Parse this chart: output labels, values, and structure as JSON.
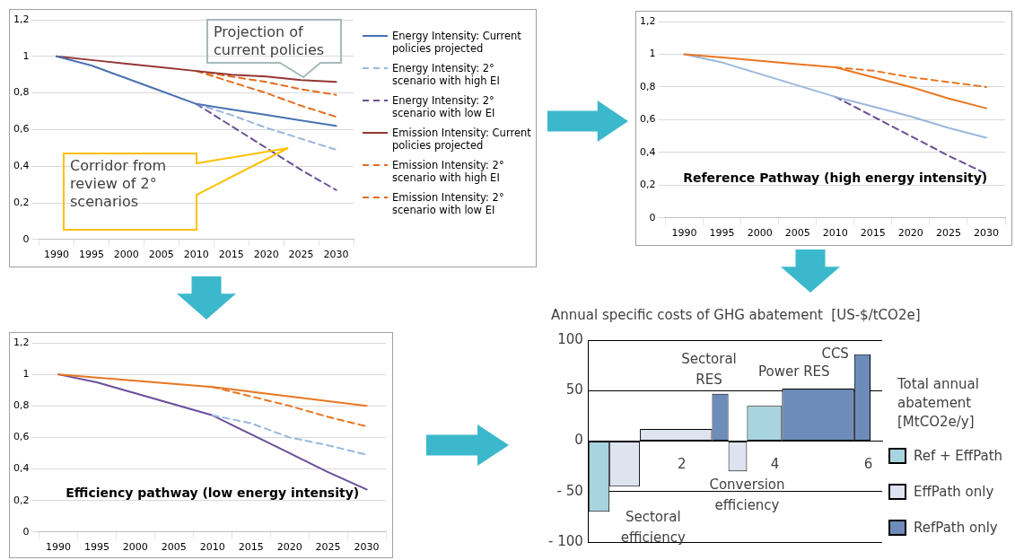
{
  "chart_data": [
    {
      "type": "line",
      "categories": [
        "1990",
        "1995",
        "2000",
        "2005",
        "2010",
        "2015",
        "2020",
        "2025",
        "2030"
      ],
      "ylim": [
        0,
        1.2
      ],
      "yticks": [
        0,
        {
          "value": 0.2,
          "label": "0,2"
        },
        {
          "value": 0.4,
          "label": "0,4"
        },
        {
          "value": 0.6,
          "label": "0,6"
        },
        {
          "value": 0.8,
          "label": "0,8"
        },
        1,
        {
          "value": 1.2,
          "label": "1,2"
        }
      ],
      "grid": "y",
      "legend": "right",
      "marker": "none",
      "annotations": [
        "Projection of current policies",
        "Corridor from review of 2° scenarios"
      ],
      "series": [
        {
          "name": "Energy Intensity: Current policies projected",
          "color": "#4a72b0",
          "line_style": "solid",
          "values": [
            1,
            0.95,
            0.88,
            0.81,
            0.74,
            0.71,
            0.68,
            0.65,
            0.62
          ]
        },
        {
          "name": "Energy Intensity: 2° scenario with high EI",
          "color": "#9ab7dd",
          "line_style": "dashed",
          "values": [
            null,
            null,
            null,
            null,
            0.74,
            0.68,
            0.61,
            0.55,
            0.49
          ]
        },
        {
          "name": "Energy Intensity: 2° scenario with low EI",
          "color": "#6a4f96",
          "line_style": "dashed",
          "values": [
            null,
            null,
            null,
            null,
            0.74,
            0.62,
            0.5,
            0.38,
            0.27
          ]
        },
        {
          "name": "Emission Intensity: Current policies projected",
          "color": "#943634",
          "line_style": "solid",
          "values": [
            1,
            0.98,
            0.96,
            0.94,
            0.92,
            0.9,
            0.89,
            0.87,
            0.86
          ]
        },
        {
          "name": "Emission Intensity: 2° scenario with high EI",
          "color": "#e46c1f",
          "line_style": "dashed",
          "values": [
            null,
            null,
            null,
            null,
            0.92,
            0.89,
            0.86,
            0.82,
            0.79
          ]
        },
        {
          "name": "Emission Intensity: 2° scenario with low EI",
          "color": "#e46c1f",
          "line_style": "dashed",
          "values": [
            null,
            null,
            null,
            null,
            0.92,
            0.86,
            0.8,
            0.73,
            0.67
          ]
        }
      ]
    },
    {
      "type": "line",
      "title": "Reference Pathway (high energy intensity)",
      "categories": [
        "1990",
        "1995",
        "2000",
        "2005",
        "2010",
        "2015",
        "2020",
        "2025",
        "2030"
      ],
      "ylim": [
        0,
        1.2
      ],
      "yticks": [
        0,
        {
          "value": 0.2,
          "label": "0,2"
        },
        {
          "value": 0.4,
          "label": "0,4"
        },
        {
          "value": 0.6,
          "label": "0,6"
        },
        {
          "value": 0.8,
          "label": "0,8"
        },
        1,
        {
          "value": 1.2,
          "label": "1,2"
        }
      ],
      "grid": "y",
      "marker": "none",
      "series": [
        {
          "color": "#e87722",
          "line_style": "solid",
          "values": [
            1,
            0.98,
            0.96,
            0.94,
            0.92,
            0.86,
            0.8,
            0.73,
            0.67
          ]
        },
        {
          "color": "#e87722",
          "line_style": "dashed",
          "values": [
            null,
            null,
            null,
            null,
            0.92,
            0.9,
            0.86,
            0.83,
            0.8
          ]
        },
        {
          "color": "#9ab7dd",
          "line_style": "solid",
          "values": [
            1,
            0.95,
            0.88,
            0.81,
            0.74,
            0.68,
            0.62,
            0.55,
            0.49
          ]
        },
        {
          "color": "#6a4f96",
          "line_style": "dashed",
          "values": [
            null,
            null,
            null,
            null,
            0.74,
            0.62,
            0.5,
            0.38,
            0.27
          ]
        }
      ]
    },
    {
      "type": "line",
      "title": "Efficiency pathway (low energy intensity)",
      "categories": [
        "1990",
        "1995",
        "2000",
        "2005",
        "2010",
        "2015",
        "2020",
        "2025",
        "2030"
      ],
      "ylim": [
        0,
        1.2
      ],
      "yticks": [
        0,
        {
          "value": 0.2,
          "label": "0,2"
        },
        {
          "value": 0.4,
          "label": "0,4"
        },
        {
          "value": 0.6,
          "label": "0,6"
        },
        {
          "value": 0.8,
          "label": "0,8"
        },
        1,
        {
          "value": 1.2,
          "label": "1,2"
        }
      ],
      "grid": "y",
      "marker": "none",
      "series": [
        {
          "color": "#e87722",
          "line_style": "solid",
          "values": [
            1,
            0.98,
            0.96,
            0.94,
            0.92,
            0.89,
            0.86,
            0.83,
            0.8
          ]
        },
        {
          "color": "#e87722",
          "line_style": "dashed",
          "values": [
            null,
            null,
            null,
            null,
            0.92,
            0.86,
            0.8,
            0.73,
            0.67
          ]
        },
        {
          "color": "#9ab7dd",
          "line_style": "dashed",
          "values": [
            null,
            null,
            null,
            null,
            0.74,
            0.69,
            0.6,
            0.55,
            0.49
          ]
        },
        {
          "color": "#6a4f9c",
          "line_style": "solid",
          "values": [
            1,
            0.95,
            0.88,
            0.81,
            0.74,
            0.62,
            0.5,
            0.38,
            0.27
          ]
        }
      ]
    },
    {
      "type": "histogram",
      "title": "Annual specific costs of GHG abatement  [US-$/tCO2e]",
      "xlabel": "Total annual abatement [MtCO2e/y]",
      "bins": [
        0,
        0.45,
        1.1,
        2.65,
        3,
        3.4,
        4.15,
        5.7,
        6.05
      ],
      "xlim": [
        0,
        6.3
      ],
      "xticks": [
        2,
        4,
        6
      ],
      "ylim": [
        -100,
        100
      ],
      "yticks": [
        {
          "value": -100,
          "label": "- 100"
        },
        {
          "value": -50,
          "label": "- 50"
        },
        0,
        50,
        100
      ],
      "grid": "y",
      "legend": "bottom right",
      "annotations": [
        "Sectoral efficiency",
        "Sectoral RES",
        "Conversion efficiency",
        "Power RES",
        "CCS"
      ],
      "series": [
        {
          "name": "Ref + EffPath",
          "color": "#a8d4e0",
          "values": [
            -70,
            null,
            null,
            null,
            null,
            35,
            null,
            null
          ]
        },
        {
          "name": "EffPath only",
          "color": "#dde3ef",
          "values": [
            null,
            -45,
            12,
            null,
            -30,
            null,
            null,
            null
          ]
        },
        {
          "name": "RefPath only",
          "color": "#6d8cba",
          "values": [
            null,
            null,
            null,
            47,
            null,
            null,
            52,
            86
          ]
        }
      ]
    }
  ]
}
